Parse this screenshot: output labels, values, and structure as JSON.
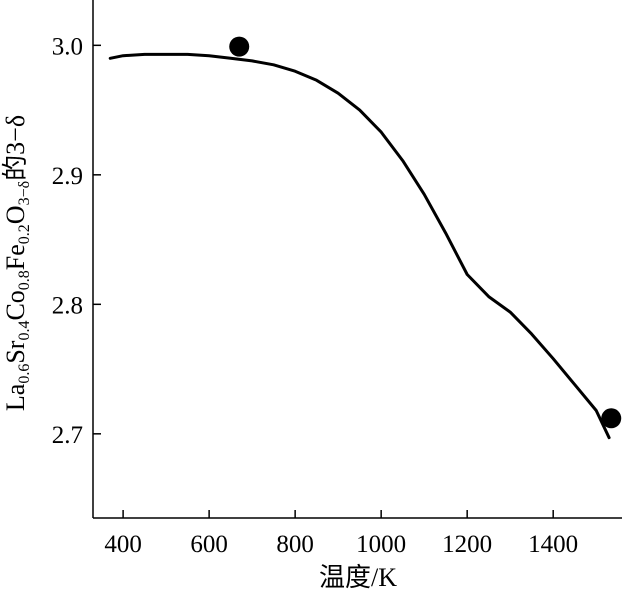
{
  "chart_data": {
    "type": "line",
    "xlabel": "温度/K",
    "ylabel": {
      "parts": [
        {
          "text": "La",
          "sub": false
        },
        {
          "text": "0.6",
          "sub": true
        },
        {
          "text": "Sr",
          "sub": false
        },
        {
          "text": "0.4",
          "sub": true
        },
        {
          "text": "Co",
          "sub": false
        },
        {
          "text": "0.8",
          "sub": true
        },
        {
          "text": "Fe",
          "sub": false
        },
        {
          "text": "0.2",
          "sub": true
        },
        {
          "text": "O",
          "sub": false
        },
        {
          "text": "3−δ",
          "sub": true
        },
        {
          "text": "的3−δ",
          "sub": false
        }
      ]
    },
    "xlim": [
      330,
      1560
    ],
    "ylim": [
      2.635,
      3.035
    ],
    "xticks": [
      {
        "value": 400,
        "label": "400"
      },
      {
        "value": 600,
        "label": "600"
      },
      {
        "value": 800,
        "label": "800"
      },
      {
        "value": 1000,
        "label": "1000"
      },
      {
        "value": 1200,
        "label": "1200"
      },
      {
        "value": 1400,
        "label": "1400"
      }
    ],
    "yticks": [
      {
        "value": 2.7,
        "label": "2.7"
      },
      {
        "value": 2.8,
        "label": "2.8"
      },
      {
        "value": 2.9,
        "label": "2.9"
      },
      {
        "value": 3.0,
        "label": "3.0"
      }
    ],
    "grid": false,
    "series": [
      {
        "kind": "line",
        "color": "#000000",
        "x": [
          370,
          400,
          450,
          500,
          550,
          600,
          650,
          700,
          750,
          800,
          850,
          900,
          950,
          1000,
          1050,
          1100,
          1150,
          1200,
          1250,
          1300,
          1350,
          1400,
          1450,
          1500,
          1530
        ],
        "y": [
          2.99,
          2.992,
          2.993,
          2.993,
          2.993,
          2.992,
          2.99,
          2.988,
          2.985,
          2.98,
          2.973,
          2.963,
          2.95,
          2.933,
          2.911,
          2.885,
          2.855,
          2.823,
          2.806,
          2.794,
          2.777,
          2.758,
          2.738,
          2.718,
          2.697
        ]
      },
      {
        "kind": "scatter",
        "color": "#000000",
        "x": [
          670,
          1535
        ],
        "y": [
          2.999,
          2.712
        ]
      }
    ]
  }
}
